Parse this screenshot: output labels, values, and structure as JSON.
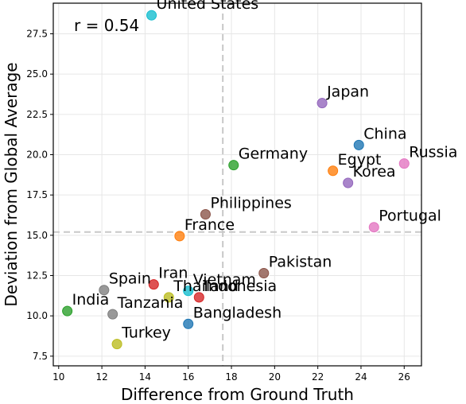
{
  "chart_data": {
    "type": "scatter",
    "xlabel": "Difference from Ground Truth",
    "ylabel": "Deviation from Global Average",
    "xlim": [
      9.75,
      26.8
    ],
    "ylim": [
      6.9,
      29.4
    ],
    "xticks": [
      10,
      12,
      14,
      16,
      18,
      20,
      22,
      24,
      26
    ],
    "yticks": [
      7.5,
      10.0,
      12.5,
      15.0,
      17.5,
      20.0,
      22.5,
      25.0,
      27.5
    ],
    "grid": true,
    "annotation": "r = 0.54",
    "mean_x": 17.6,
    "mean_y": 15.2,
    "points": [
      {
        "label": "United States",
        "x": 14.3,
        "y": 28.65,
        "color": "#17becf"
      },
      {
        "label": "Japan",
        "x": 22.2,
        "y": 23.2,
        "color": "#9467bd"
      },
      {
        "label": "China",
        "x": 23.9,
        "y": 20.6,
        "color": "#1f77b4"
      },
      {
        "label": "Germany",
        "x": 18.1,
        "y": 19.35,
        "color": "#2ca02c"
      },
      {
        "label": "Egypt",
        "x": 22.7,
        "y": 19.0,
        "color": "#ff7f0e"
      },
      {
        "label": "Russia",
        "x": 26.0,
        "y": 19.45,
        "color": "#e377c2"
      },
      {
        "label": "Korea",
        "x": 23.4,
        "y": 18.25,
        "color": "#9467bd"
      },
      {
        "label": "Philippines",
        "x": 16.8,
        "y": 16.3,
        "color": "#8c564b"
      },
      {
        "label": "France",
        "x": 15.6,
        "y": 14.95,
        "color": "#ff7f0e"
      },
      {
        "label": "Portugal",
        "x": 24.6,
        "y": 15.5,
        "color": "#e377c2"
      },
      {
        "label": "Pakistan",
        "x": 19.5,
        "y": 12.65,
        "color": "#8c564b"
      },
      {
        "label": "Spain",
        "x": 12.1,
        "y": 11.6,
        "color": "#7f7f7f"
      },
      {
        "label": "Iran",
        "x": 14.4,
        "y": 11.95,
        "color": "#d62728"
      },
      {
        "label": "Vietnam",
        "x": 16.0,
        "y": 11.55,
        "color": "#17becf"
      },
      {
        "label": "Thailand",
        "x": 15.1,
        "y": 11.15,
        "color": "#bcbd22"
      },
      {
        "label": "Indonesia",
        "x": 16.5,
        "y": 11.15,
        "color": "#d62728"
      },
      {
        "label": "India",
        "x": 10.4,
        "y": 10.3,
        "color": "#2ca02c"
      },
      {
        "label": "Tanzania",
        "x": 12.5,
        "y": 10.1,
        "color": "#7f7f7f"
      },
      {
        "label": "Bangladesh",
        "x": 16.0,
        "y": 9.5,
        "color": "#1f77b4"
      },
      {
        "label": "Turkey",
        "x": 12.7,
        "y": 8.25,
        "color": "#bcbd22"
      }
    ]
  }
}
